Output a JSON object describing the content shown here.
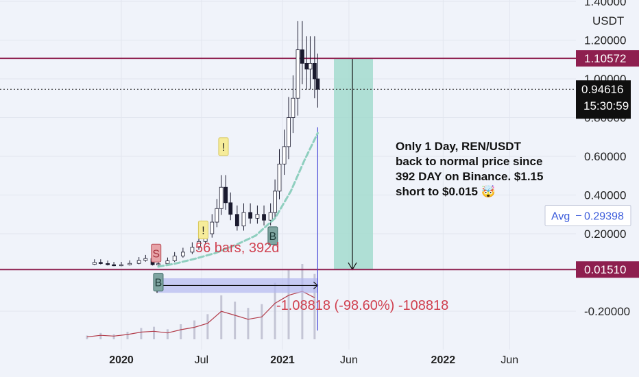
{
  "chart_data": {
    "type": "candlestick",
    "pair": "REN/USDT",
    "currency_label": "USDT",
    "y_axis": {
      "ticks": [
        {
          "value": 1.4,
          "label": "1.40000"
        },
        {
          "value": 1.2,
          "label": "1.20000"
        },
        {
          "value": 1.0,
          "label": "1.00000"
        },
        {
          "value": 0.8,
          "label": "0.80000"
        },
        {
          "value": 0.6,
          "label": "0.60000"
        },
        {
          "value": 0.4,
          "label": "0.40000"
        },
        {
          "value": 0.2,
          "label": "0.20000"
        },
        {
          "value": -0.2,
          "label": "-0.20000"
        }
      ],
      "range": [
        -0.33,
        1.42
      ]
    },
    "x_axis": {
      "ticks": [
        {
          "date": "2020-01-01",
          "label": "2020",
          "bold": true
        },
        {
          "date": "2020-07-01",
          "label": "Jul",
          "bold": false
        },
        {
          "date": "2021-01-01",
          "label": "2021",
          "bold": true
        },
        {
          "date": "2021-06-01",
          "label": "Jun",
          "bold": false
        },
        {
          "date": "2022-01-01",
          "label": "2022",
          "bold": true
        },
        {
          "date": "2022-06-01",
          "label": "Jun",
          "bold": false
        }
      ]
    },
    "horizontal_lines": [
      {
        "value": 1.10572,
        "label": "1.10572"
      },
      {
        "value": 0.0151,
        "label": "0.01510"
      }
    ],
    "last_price": {
      "value": 0.94616,
      "label": "0.94616",
      "countdown": "15:30:59"
    },
    "avg": {
      "value": 0.29398,
      "label": "Avg",
      "value_label": "0.29398"
    },
    "close_series": [
      [
        "2019-10-15",
        0.042
      ],
      [
        "2019-11-01",
        0.052
      ],
      [
        "2019-11-15",
        0.046
      ],
      [
        "2019-12-01",
        0.04
      ],
      [
        "2019-12-15",
        0.036
      ],
      [
        "2020-01-01",
        0.04
      ],
      [
        "2020-01-20",
        0.047
      ],
      [
        "2020-02-10",
        0.062
      ],
      [
        "2020-02-25",
        0.072
      ],
      [
        "2020-03-12",
        0.04
      ],
      [
        "2020-03-25",
        0.045
      ],
      [
        "2020-04-15",
        0.06
      ],
      [
        "2020-05-01",
        0.085
      ],
      [
        "2020-05-20",
        0.105
      ],
      [
        "2020-06-10",
        0.13
      ],
      [
        "2020-06-25",
        0.16
      ],
      [
        "2020-07-10",
        0.2
      ],
      [
        "2020-07-25",
        0.26
      ],
      [
        "2020-08-05",
        0.33
      ],
      [
        "2020-08-15",
        0.44
      ],
      [
        "2020-08-25",
        0.36
      ],
      [
        "2020-09-05",
        0.3
      ],
      [
        "2020-09-20",
        0.24
      ],
      [
        "2020-10-05",
        0.31
      ],
      [
        "2020-10-20",
        0.28
      ],
      [
        "2020-11-05",
        0.3
      ],
      [
        "2020-11-20",
        0.27
      ],
      [
        "2020-12-05",
        0.31
      ],
      [
        "2020-12-15",
        0.42
      ],
      [
        "2020-12-25",
        0.56
      ],
      [
        "2021-01-05",
        0.65
      ],
      [
        "2021-01-15",
        0.8
      ],
      [
        "2021-01-25",
        0.9
      ],
      [
        "2021-02-05",
        1.15
      ],
      [
        "2021-02-15",
        1.08
      ],
      [
        "2021-02-25",
        1.05
      ],
      [
        "2021-03-05",
        1.08
      ],
      [
        "2021-03-15",
        1.0
      ],
      [
        "2021-03-22",
        0.946
      ]
    ],
    "moving_average": [
      [
        "2020-03-25",
        0.03
      ],
      [
        "2020-05-01",
        0.045
      ],
      [
        "2020-06-15",
        0.07
      ],
      [
        "2020-08-01",
        0.1
      ],
      [
        "2020-09-15",
        0.14
      ],
      [
        "2020-11-01",
        0.19
      ],
      [
        "2020-12-15",
        0.28
      ],
      [
        "2021-01-20",
        0.42
      ],
      [
        "2021-02-20",
        0.58
      ],
      [
        "2021-03-22",
        0.72
      ]
    ],
    "volume_series": [
      [
        "2019-10-15",
        3
      ],
      [
        "2019-11-15",
        5
      ],
      [
        "2019-12-15",
        4
      ],
      [
        "2020-01-15",
        6
      ],
      [
        "2020-02-15",
        9
      ],
      [
        "2020-03-15",
        10
      ],
      [
        "2020-04-15",
        8
      ],
      [
        "2020-05-15",
        12
      ],
      [
        "2020-06-15",
        15
      ],
      [
        "2020-07-15",
        20
      ],
      [
        "2020-08-15",
        35
      ],
      [
        "2020-09-15",
        30
      ],
      [
        "2020-10-15",
        25
      ],
      [
        "2020-11-15",
        28
      ],
      [
        "2020-12-15",
        45
      ],
      [
        "2021-01-15",
        55
      ],
      [
        "2021-02-15",
        60
      ],
      [
        "2021-03-15",
        52
      ]
    ],
    "annotations": [
      {
        "text": "Only 1 Day, REN/USDT",
        "line": 1
      },
      {
        "text": "back to normal price since",
        "line": 2
      },
      {
        "text": "392 DAY on Binance. $1.15",
        "line": 3
      },
      {
        "text": "short to $0.015 🤯",
        "line": 4
      },
      {
        "text": "56 bars, 392d",
        "type": "range-label"
      },
      {
        "text": "-1.08818 (-98.60%) -108818",
        "type": "measure-label"
      }
    ],
    "markers": [
      {
        "label": "S",
        "date": "2020-03-20",
        "value": 0.1
      },
      {
        "label": "B",
        "date": "2020-12-10",
        "value": 0.19
      },
      {
        "label": "B",
        "date": "2020-03-25",
        "value": -0.05
      },
      {
        "label": "!",
        "date": "2020-08-20",
        "value": 0.65
      },
      {
        "label": "!",
        "date": "2020-07-05",
        "value": 0.22
      }
    ],
    "grid": true,
    "legend_position": "none"
  }
}
